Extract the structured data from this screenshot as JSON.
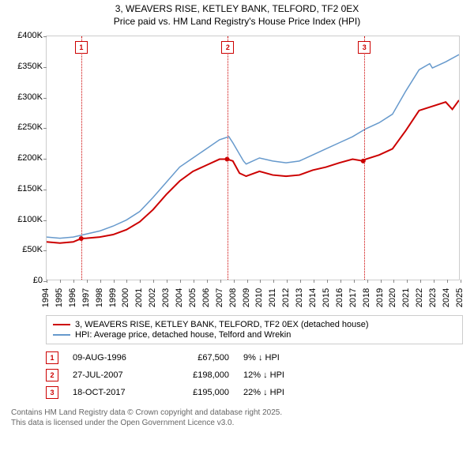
{
  "title": {
    "line1": "3, WEAVERS RISE, KETLEY BANK, TELFORD, TF2 0EX",
    "line2": "Price paid vs. HM Land Registry's House Price Index (HPI)"
  },
  "chart": {
    "type": "line",
    "background_color": "#ffffff",
    "border_color": "#cccccc",
    "ylim": [
      0,
      400000
    ],
    "ytick_step": 50000,
    "yticks": [
      "£0",
      "£50K",
      "£100K",
      "£150K",
      "£200K",
      "£250K",
      "£300K",
      "£350K",
      "£400K"
    ],
    "xlim": [
      1994,
      2025
    ],
    "xticks": [
      1994,
      1995,
      1996,
      1997,
      1998,
      1999,
      2000,
      2001,
      2002,
      2003,
      2004,
      2005,
      2006,
      2007,
      2008,
      2009,
      2010,
      2011,
      2012,
      2013,
      2014,
      2015,
      2016,
      2017,
      2018,
      2019,
      2020,
      2021,
      2022,
      2023,
      2024,
      2025
    ],
    "series": [
      {
        "name": "price_paid",
        "label": "3, WEAVERS RISE, KETLEY BANK, TELFORD, TF2 0EX (detached house)",
        "color": "#cc0000",
        "line_width": 2,
        "data": [
          [
            1994,
            62000
          ],
          [
            1995,
            60000
          ],
          [
            1996,
            62000
          ],
          [
            1996.6,
            67500
          ],
          [
            1997,
            68000
          ],
          [
            1998,
            70000
          ],
          [
            1999,
            74000
          ],
          [
            2000,
            82000
          ],
          [
            2001,
            95000
          ],
          [
            2002,
            115000
          ],
          [
            2003,
            140000
          ],
          [
            2004,
            162000
          ],
          [
            2005,
            178000
          ],
          [
            2006,
            188000
          ],
          [
            2007,
            198000
          ],
          [
            2007.57,
            198000
          ],
          [
            2008,
            195000
          ],
          [
            2008.5,
            175000
          ],
          [
            2009,
            170000
          ],
          [
            2010,
            178000
          ],
          [
            2011,
            172000
          ],
          [
            2012,
            170000
          ],
          [
            2013,
            172000
          ],
          [
            2014,
            180000
          ],
          [
            2015,
            185000
          ],
          [
            2016,
            192000
          ],
          [
            2017,
            198000
          ],
          [
            2017.8,
            195000
          ],
          [
            2018,
            198000
          ],
          [
            2019,
            205000
          ],
          [
            2020,
            215000
          ],
          [
            2021,
            245000
          ],
          [
            2022,
            278000
          ],
          [
            2023,
            285000
          ],
          [
            2024,
            292000
          ],
          [
            2024.5,
            280000
          ],
          [
            2025,
            295000
          ]
        ]
      },
      {
        "name": "hpi",
        "label": "HPI: Average price, detached house, Telford and Wrekin",
        "color": "#6699cc",
        "line_width": 1.5,
        "data": [
          [
            1994,
            70000
          ],
          [
            1995,
            68000
          ],
          [
            1996,
            70000
          ],
          [
            1997,
            75000
          ],
          [
            1998,
            80000
          ],
          [
            1999,
            88000
          ],
          [
            2000,
            98000
          ],
          [
            2001,
            112000
          ],
          [
            2002,
            135000
          ],
          [
            2003,
            160000
          ],
          [
            2004,
            185000
          ],
          [
            2005,
            200000
          ],
          [
            2006,
            215000
          ],
          [
            2007,
            230000
          ],
          [
            2007.7,
            235000
          ],
          [
            2008,
            225000
          ],
          [
            2008.8,
            195000
          ],
          [
            2009,
            190000
          ],
          [
            2010,
            200000
          ],
          [
            2011,
            195000
          ],
          [
            2012,
            192000
          ],
          [
            2013,
            195000
          ],
          [
            2014,
            205000
          ],
          [
            2015,
            215000
          ],
          [
            2016,
            225000
          ],
          [
            2017,
            235000
          ],
          [
            2018,
            248000
          ],
          [
            2019,
            258000
          ],
          [
            2020,
            272000
          ],
          [
            2021,
            310000
          ],
          [
            2022,
            345000
          ],
          [
            2022.8,
            355000
          ],
          [
            2023,
            348000
          ],
          [
            2024,
            358000
          ],
          [
            2025,
            370000
          ]
        ]
      }
    ],
    "events": [
      {
        "num": "1",
        "x": 1996.6,
        "date": "09-AUG-1996",
        "price": "£67,500",
        "delta": "9% ↓ HPI"
      },
      {
        "num": "2",
        "x": 2007.57,
        "date": "27-JUL-2007",
        "price": "£198,000",
        "delta": "12% ↓ HPI"
      },
      {
        "num": "3",
        "x": 2017.8,
        "date": "18-OCT-2017",
        "price": "£195,000",
        "delta": "22% ↓ HPI"
      }
    ],
    "vline_color": "#cc0000"
  },
  "footer": {
    "line1": "Contains HM Land Registry data © Crown copyright and database right 2025.",
    "line2": "This data is licensed under the Open Government Licence v3.0."
  }
}
